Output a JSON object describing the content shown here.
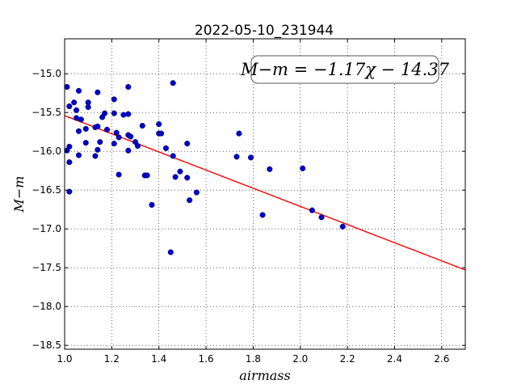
{
  "chart_data": {
    "type": "scatter",
    "title": "2022-05-10_231944",
    "xlabel": "airmass",
    "ylabel": "M−m",
    "xlim": [
      1.0,
      2.7
    ],
    "ylim": [
      -18.55,
      -14.55
    ],
    "x_ticks": [
      "1.0",
      "1.2",
      "1.4",
      "1.6",
      "1.8",
      "2.0",
      "2.2",
      "2.4",
      "2.6"
    ],
    "x_tick_values": [
      1.0,
      1.2,
      1.4,
      1.6,
      1.8,
      2.0,
      2.2,
      2.4,
      2.6
    ],
    "y_ticks": [
      "−15.0",
      "−15.5",
      "−16.0",
      "−16.5",
      "−17.0",
      "−17.5",
      "−18.0",
      "−18.5"
    ],
    "y_tick_values": [
      -15.0,
      -15.5,
      -16.0,
      -16.5,
      -17.0,
      -17.5,
      -18.0,
      -18.5
    ],
    "grid": true,
    "annotation": "M−m = −1.17χ − 14.37",
    "fit": {
      "slope": -1.17,
      "intercept": -14.37,
      "color": "#ff0000"
    },
    "point_color": "#0000cc",
    "points": [
      [
        1.01,
        -15.17
      ],
      [
        1.02,
        -15.42
      ],
      [
        1.04,
        -15.37
      ],
      [
        1.05,
        -15.47
      ],
      [
        1.06,
        -15.22
      ],
      [
        1.05,
        -15.57
      ],
      [
        1.07,
        -15.59
      ],
      [
        1.06,
        -15.74
      ],
      [
        1.02,
        -15.94
      ],
      [
        1.01,
        -15.99
      ],
      [
        1.02,
        -16.14
      ],
      [
        1.06,
        -16.05
      ],
      [
        1.02,
        -16.52
      ],
      [
        1.1,
        -15.37
      ],
      [
        1.1,
        -15.43
      ],
      [
        1.09,
        -15.71
      ],
      [
        1.09,
        -15.89
      ],
      [
        1.14,
        -15.24
      ],
      [
        1.16,
        -15.56
      ],
      [
        1.17,
        -15.51
      ],
      [
        1.13,
        -15.69
      ],
      [
        1.14,
        -15.68
      ],
      [
        1.18,
        -15.72
      ],
      [
        1.15,
        -15.88
      ],
      [
        1.14,
        -15.98
      ],
      [
        1.13,
        -16.06
      ],
      [
        1.21,
        -15.33
      ],
      [
        1.27,
        -15.17
      ],
      [
        1.21,
        -15.51
      ],
      [
        1.25,
        -15.53
      ],
      [
        1.27,
        -15.52
      ],
      [
        1.22,
        -15.76
      ],
      [
        1.23,
        -15.82
      ],
      [
        1.27,
        -15.79
      ],
      [
        1.28,
        -15.81
      ],
      [
        1.21,
        -15.9
      ],
      [
        1.3,
        -15.88
      ],
      [
        1.31,
        -15.93
      ],
      [
        1.27,
        -15.99
      ],
      [
        1.33,
        -15.67
      ],
      [
        1.23,
        -16.3
      ],
      [
        1.34,
        -16.31
      ],
      [
        1.35,
        -16.31
      ],
      [
        1.37,
        -16.69
      ],
      [
        1.4,
        -15.65
      ],
      [
        1.4,
        -15.77
      ],
      [
        1.41,
        -15.77
      ],
      [
        1.43,
        -15.96
      ],
      [
        1.46,
        -15.12
      ],
      [
        1.46,
        -16.06
      ],
      [
        1.52,
        -15.9
      ],
      [
        1.49,
        -16.26
      ],
      [
        1.47,
        -16.33
      ],
      [
        1.52,
        -16.34
      ],
      [
        1.53,
        -16.63
      ],
      [
        1.56,
        -16.53
      ],
      [
        1.45,
        -17.3
      ],
      [
        1.73,
        -16.07
      ],
      [
        1.74,
        -15.77
      ],
      [
        1.79,
        -16.08
      ],
      [
        1.87,
        -16.23
      ],
      [
        1.84,
        -16.82
      ],
      [
        2.01,
        -16.22
      ],
      [
        2.05,
        -16.76
      ],
      [
        2.09,
        -16.85
      ],
      [
        2.18,
        -16.97
      ]
    ]
  }
}
